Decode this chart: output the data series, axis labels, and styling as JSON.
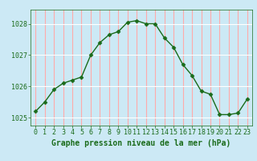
{
  "x": [
    0,
    1,
    2,
    3,
    4,
    5,
    6,
    7,
    8,
    9,
    10,
    11,
    12,
    13,
    14,
    15,
    16,
    17,
    18,
    19,
    20,
    21,
    22,
    23
  ],
  "y": [
    1025.2,
    1025.5,
    1025.9,
    1026.1,
    1026.2,
    1026.3,
    1027.0,
    1027.4,
    1027.65,
    1027.75,
    1028.05,
    1028.1,
    1028.0,
    1028.0,
    1027.55,
    1027.25,
    1026.7,
    1026.35,
    1025.85,
    1025.75,
    1025.1,
    1025.1,
    1025.15,
    1025.6
  ],
  "line_color": "#1a6b1a",
  "marker": "D",
  "marker_size": 2.5,
  "bg_color": "#cce9f5",
  "grid_color": "#ffffff",
  "xlabel": "Graphe pression niveau de la mer (hPa)",
  "xlabel_color": "#1a6b1a",
  "tick_color": "#1a6b1a",
  "label_color": "#1a6b1a",
  "ylim": [
    1024.75,
    1028.45
  ],
  "yticks": [
    1025,
    1026,
    1027,
    1028
  ],
  "xlim": [
    -0.5,
    23.5
  ],
  "xticks": [
    0,
    1,
    2,
    3,
    4,
    5,
    6,
    7,
    8,
    9,
    10,
    11,
    12,
    13,
    14,
    15,
    16,
    17,
    18,
    19,
    20,
    21,
    22,
    23
  ],
  "tick_fontsize": 6,
  "xlabel_fontsize": 7,
  "linewidth": 1.0
}
